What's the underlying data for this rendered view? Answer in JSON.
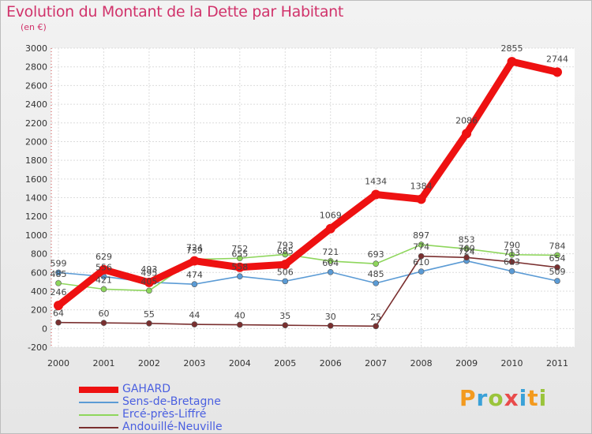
{
  "title": "Evolution du Montant de la Dette par Habitant",
  "subtitle": "(en €)",
  "logo": {
    "text": "Proxiti",
    "colors": [
      "#f39a1f",
      "#3aa1d8",
      "#9ac43b",
      "#e94b4b",
      "#3aa1d8",
      "#f39a1f",
      "#9ac43b"
    ]
  },
  "chart_data": {
    "type": "line",
    "title": "Evolution du Montant de la Dette par Habitant",
    "ylabel": "(en €)",
    "xlabel": "",
    "x": [
      "2000",
      "2001",
      "2002",
      "2003",
      "2004",
      "2005",
      "2006",
      "2007",
      "2008",
      "2009",
      "2010",
      "2011"
    ],
    "ylim": [
      -200,
      3000
    ],
    "yticks": [
      "-200",
      "0",
      "200",
      "400",
      "600",
      "800",
      "1000",
      "1200",
      "1400",
      "1600",
      "1800",
      "2000",
      "2200",
      "2400",
      "2600",
      "2800",
      "3000"
    ],
    "grid": true,
    "legend_position": "bottom-left",
    "series": [
      {
        "name": "Sens-de-Bretagne",
        "color": "#5b9bd5",
        "values": [
          599,
          556,
          495,
          474,
          558,
          506,
          604,
          485,
          610,
          724,
          613,
          509
        ],
        "labels": [
          "599",
          "556",
          "495",
          "474",
          "558",
          "506",
          "604",
          "485",
          "610",
          "724",
          "613",
          "509"
        ]
      },
      {
        "name": "Ercé-près-Liffré",
        "color": "#8ed65c",
        "values": [
          485,
          421,
          405,
          739,
          752,
          793,
          721,
          693,
          897,
          853,
          790,
          784
        ],
        "labels": [
          "485",
          "421",
          "405",
          "739",
          "752",
          "793",
          "721",
          "693",
          "897",
          "853",
          "790",
          "784"
        ]
      },
      {
        "name": "Andouillé-Neuville",
        "color": "#7a2f2f",
        "values": [
          64,
          60,
          55,
          44,
          40,
          35,
          30,
          25,
          774,
          760,
          713,
          654
        ],
        "labels": [
          "64",
          "60",
          "55",
          "44",
          "40",
          "35",
          "30",
          "25",
          "774",
          "760",
          "713",
          "654"
        ]
      },
      {
        "name": "GAHARD",
        "color": "#ee1111",
        "values": [
          246,
          629,
          493,
          724,
          655,
          685,
          1069,
          1434,
          1384,
          2086,
          2855,
          2744
        ],
        "labels": [
          "246",
          "629",
          "493",
          "724",
          "655",
          "685",
          "1069",
          "1434",
          "1384",
          "2086",
          "2855",
          "2744"
        ]
      }
    ]
  },
  "legend": [
    {
      "name": "GAHARD",
      "color": "#ee1111",
      "width": 8
    },
    {
      "name": "Sens-de-Bretagne",
      "color": "#5b9bd5",
      "width": 2
    },
    {
      "name": "Ercé-près-Liffré",
      "color": "#8ed65c",
      "width": 2
    },
    {
      "name": "Andouillé-Neuville",
      "color": "#7a2f2f",
      "width": 2
    }
  ]
}
